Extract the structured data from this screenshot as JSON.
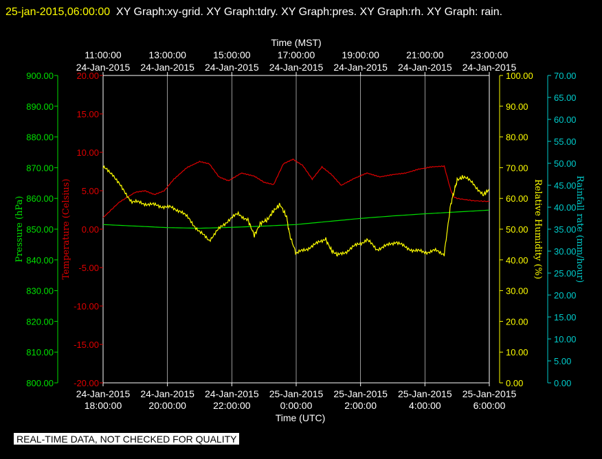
{
  "header": {
    "timestamp": "25-jan-2015,06:00:00",
    "graphs": "XY Graph:xy-grid.  XY Graph:tdry.  XY Graph:pres.  XY Graph:rh.  XY Graph: rain."
  },
  "footer": {
    "disclaimer": "REAL-TIME DATA, NOT CHECKED FOR QUALITY"
  },
  "chart_data": {
    "type": "line",
    "grid": "vertical",
    "colors": {
      "temperature": "#e00000",
      "humidity": "#ffff00",
      "pressure": "#00e000",
      "rain": "#00cccc",
      "frame": "#ffffff"
    },
    "x_bottom": {
      "label": "Time (UTC)",
      "range_hours": [
        18,
        30
      ],
      "ticks": [
        {
          "date": "24-Jan-2015",
          "time": "18:00:00"
        },
        {
          "date": "24-Jan-2015",
          "time": "20:00:00"
        },
        {
          "date": "24-Jan-2015",
          "time": "22:00:00"
        },
        {
          "date": "25-Jan-2015",
          "time": "0:00:00"
        },
        {
          "date": "25-Jan-2015",
          "time": "2:00:00"
        },
        {
          "date": "25-Jan-2015",
          "time": "4:00:00"
        },
        {
          "date": "25-Jan-2015",
          "time": "6:00:00"
        }
      ]
    },
    "x_top": {
      "label": "Time (MST)",
      "ticks": [
        {
          "time": "11:00:00",
          "date": "24-Jan-2015"
        },
        {
          "time": "13:00:00",
          "date": "24-Jan-2015"
        },
        {
          "time": "15:00:00",
          "date": "24-Jan-2015"
        },
        {
          "time": "17:00:00",
          "date": "24-Jan-2015"
        },
        {
          "time": "19:00:00",
          "date": "24-Jan-2015"
        },
        {
          "time": "21:00:00",
          "date": "24-Jan-2015"
        },
        {
          "time": "23:00:00",
          "date": "24-Jan-2015"
        }
      ]
    },
    "axes": {
      "pressure": {
        "label": "Pressure (hPa)",
        "range": [
          800,
          900
        ],
        "ticks": [
          "900.00",
          "890.00",
          "880.00",
          "870.00",
          "860.00",
          "850.00",
          "840.00",
          "830.00",
          "820.00",
          "810.00",
          "800.00"
        ]
      },
      "temperature": {
        "label": "Temperature (Celsius)",
        "range": [
          -20,
          20
        ],
        "ticks": [
          "20.00",
          "15.00",
          "10.00",
          "5.00",
          "0.00",
          "-5.00",
          "-10.00",
          "-15.00",
          "-20.00"
        ]
      },
      "humidity": {
        "label": "Relative Humidity (%)",
        "range": [
          0,
          100
        ],
        "ticks": [
          "100.00",
          "90.00",
          "80.00",
          "70.00",
          "60.00",
          "50.00",
          "40.00",
          "30.00",
          "20.00",
          "10.00",
          "0.00"
        ]
      },
      "rain": {
        "label": "Rainfall rate (mm/hour)",
        "range": [
          0,
          70
        ],
        "ticks": [
          "70.00",
          "65.00",
          "60.00",
          "55.00",
          "50.00",
          "45.00",
          "40.00",
          "35.00",
          "30.00",
          "25.00",
          "20.00",
          "15.00",
          "10.00",
          "5.00",
          "0.00"
        ]
      }
    },
    "series": [
      {
        "name": "tdry",
        "axis": "temperature",
        "x": [
          18.0,
          18.5,
          19.0,
          19.3,
          19.6,
          19.9,
          20.2,
          20.6,
          21.0,
          21.3,
          21.6,
          21.9,
          22.3,
          22.7,
          23.0,
          23.3,
          23.6,
          23.9,
          24.2,
          24.5,
          24.8,
          25.1,
          25.4,
          25.8,
          26.2,
          26.6,
          27.0,
          27.4,
          27.8,
          28.2,
          28.6,
          28.8,
          28.9,
          29.0,
          29.5,
          30.0
        ],
        "values": [
          1.5,
          3.5,
          4.8,
          5.0,
          4.5,
          5.0,
          6.5,
          8.0,
          8.8,
          8.5,
          6.8,
          6.3,
          7.3,
          6.9,
          6.1,
          5.8,
          8.5,
          9.1,
          8.3,
          6.5,
          8.1,
          7.1,
          5.7,
          6.6,
          7.3,
          6.8,
          7.1,
          7.3,
          7.8,
          8.1,
          8.2,
          5.1,
          4.2,
          4.0,
          3.7,
          3.6
        ]
      },
      {
        "name": "pres",
        "axis": "pressure",
        "x": [
          18.0,
          19.0,
          20.0,
          21.0,
          22.0,
          23.0,
          24.0,
          25.0,
          26.0,
          27.0,
          28.0,
          29.0,
          30.0
        ],
        "values": [
          851.5,
          851.0,
          850.5,
          850.3,
          850.6,
          851.0,
          851.5,
          852.5,
          853.5,
          854.3,
          855.0,
          855.6,
          856.2
        ]
      },
      {
        "name": "rh",
        "axis": "humidity",
        "x": [
          18.0,
          18.3,
          18.6,
          18.9,
          19.2,
          19.5,
          19.8,
          20.1,
          20.4,
          20.7,
          21.0,
          21.3,
          21.6,
          21.9,
          22.2,
          22.5,
          22.7,
          22.9,
          23.1,
          23.3,
          23.5,
          23.7,
          23.8,
          24.0,
          24.3,
          24.6,
          24.9,
          25.1,
          25.3,
          25.6,
          25.9,
          26.2,
          26.5,
          26.8,
          27.1,
          27.4,
          27.7,
          28.0,
          28.3,
          28.6,
          28.8,
          28.9,
          29.0,
          29.2,
          29.5,
          29.8,
          30.0
        ],
        "values": [
          70.0,
          68.0,
          63.0,
          59.0,
          58.5,
          58.0,
          57.5,
          57.0,
          56.0,
          53.0,
          49.0,
          46.5,
          50.0,
          53.0,
          55.0,
          53.0,
          48.0,
          52.0,
          53.0,
          56.0,
          58.0,
          54.0,
          48.0,
          42.0,
          43.5,
          45.0,
          47.0,
          43.0,
          41.5,
          43.0,
          45.0,
          46.5,
          43.5,
          44.5,
          46.0,
          44.0,
          43.0,
          42.5,
          43.0,
          42.0,
          58.0,
          62.0,
          66.0,
          67.0,
          65.0,
          61.0,
          63.0
        ]
      },
      {
        "name": "rain",
        "axis": "rain",
        "x": [],
        "values": []
      }
    ]
  }
}
